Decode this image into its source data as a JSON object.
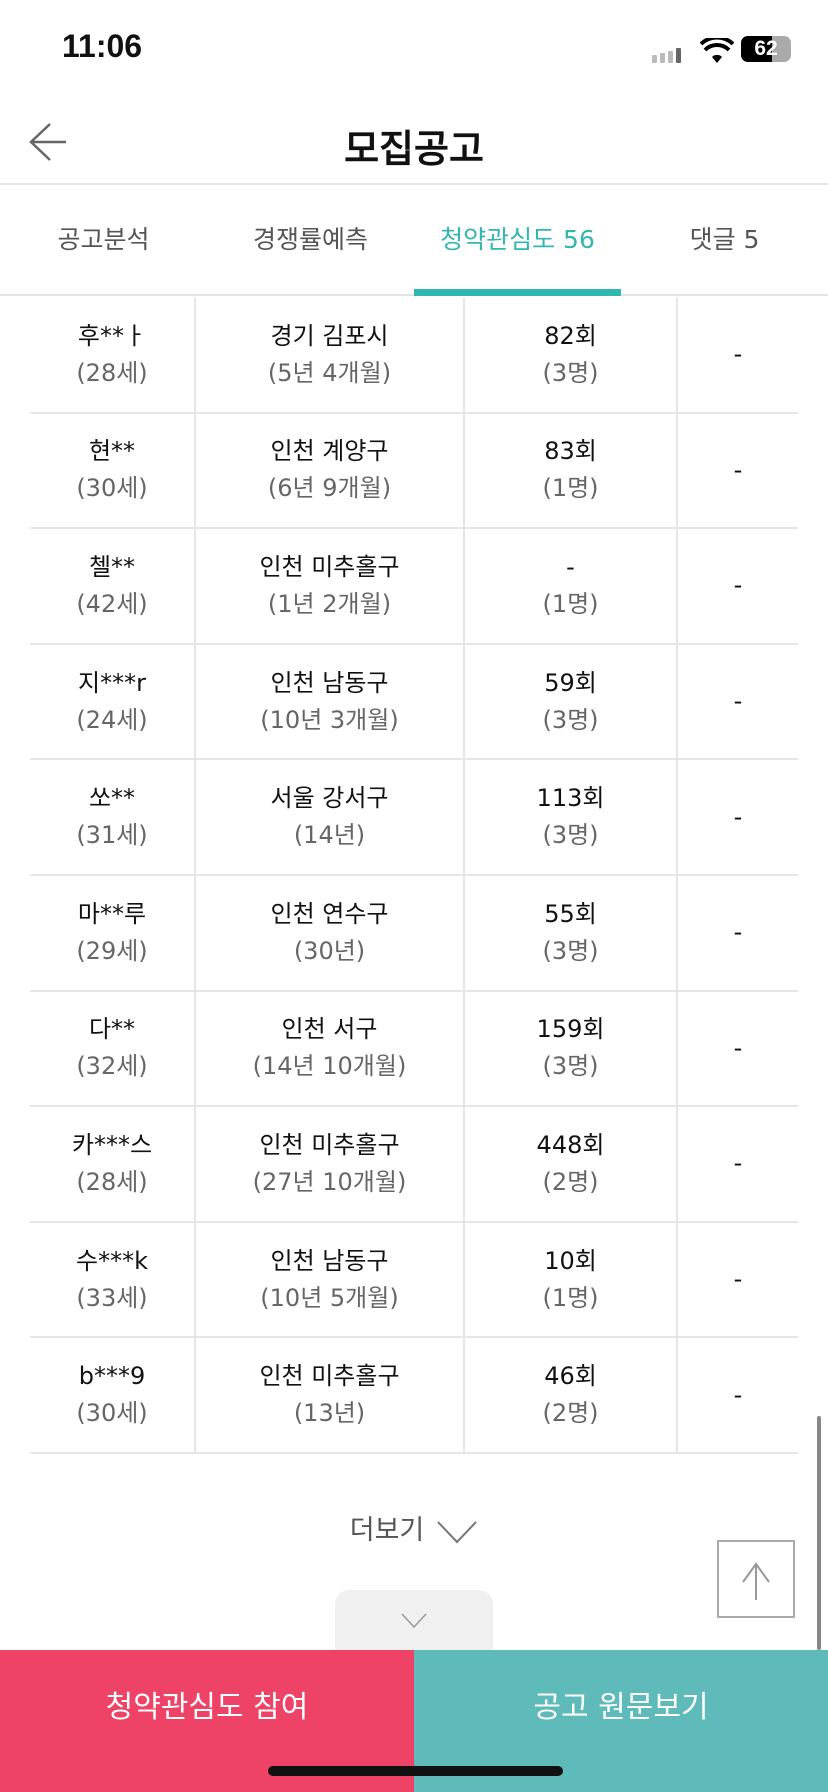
{
  "status_bar": {
    "time": "11:06",
    "battery": "62"
  },
  "header": {
    "title": "모집공고"
  },
  "tabs": [
    {
      "label": "공고분석"
    },
    {
      "label": "경쟁률예측"
    },
    {
      "label": "청약관심도 56",
      "active": true
    },
    {
      "label": "댓글 5"
    }
  ],
  "rows": [
    {
      "name": "후**ㅏ",
      "age": "(28세)",
      "region": "경기 김포시",
      "period": "(5년 4개월)",
      "count": "82회",
      "family": "(3명)",
      "extra": "-"
    },
    {
      "name": "현**",
      "age": "(30세)",
      "region": "인천 계양구",
      "period": "(6년 9개월)",
      "count": "83회",
      "family": "(1명)",
      "extra": "-"
    },
    {
      "name": "첼**",
      "age": "(42세)",
      "region": "인천 미추홀구",
      "period": "(1년 2개월)",
      "count": "-",
      "family": "(1명)",
      "extra": "-"
    },
    {
      "name": "지***r",
      "age": "(24세)",
      "region": "인천 남동구",
      "period": "(10년 3개월)",
      "count": "59회",
      "family": "(3명)",
      "extra": "-"
    },
    {
      "name": "쏘**",
      "age": "(31세)",
      "region": "서울 강서구",
      "period": "(14년)",
      "count": "113회",
      "family": "(3명)",
      "extra": "-"
    },
    {
      "name": "마**루",
      "age": "(29세)",
      "region": "인천 연수구",
      "period": "(30년)",
      "count": "55회",
      "family": "(3명)",
      "extra": "-"
    },
    {
      "name": "다**",
      "age": "(32세)",
      "region": "인천 서구",
      "period": "(14년 10개월)",
      "count": "159회",
      "family": "(3명)",
      "extra": "-"
    },
    {
      "name": "카***스",
      "age": "(28세)",
      "region": "인천 미추홀구",
      "period": "(27년 10개월)",
      "count": "448회",
      "family": "(2명)",
      "extra": "-"
    },
    {
      "name": "수***k",
      "age": "(33세)",
      "region": "인천 남동구",
      "period": "(10년 5개월)",
      "count": "10회",
      "family": "(1명)",
      "extra": "-"
    },
    {
      "name": "b***9",
      "age": "(30세)",
      "region": "인천 미추홀구",
      "period": "(13년)",
      "count": "46회",
      "family": "(2명)",
      "extra": "-"
    }
  ],
  "more_label": "더보기",
  "buttons": {
    "join": "청약관심도 참여",
    "original": "공고 원문보기"
  },
  "colors": {
    "accent": "#35b5b0",
    "join": "#ee4266",
    "original": "#5fbbb9"
  }
}
